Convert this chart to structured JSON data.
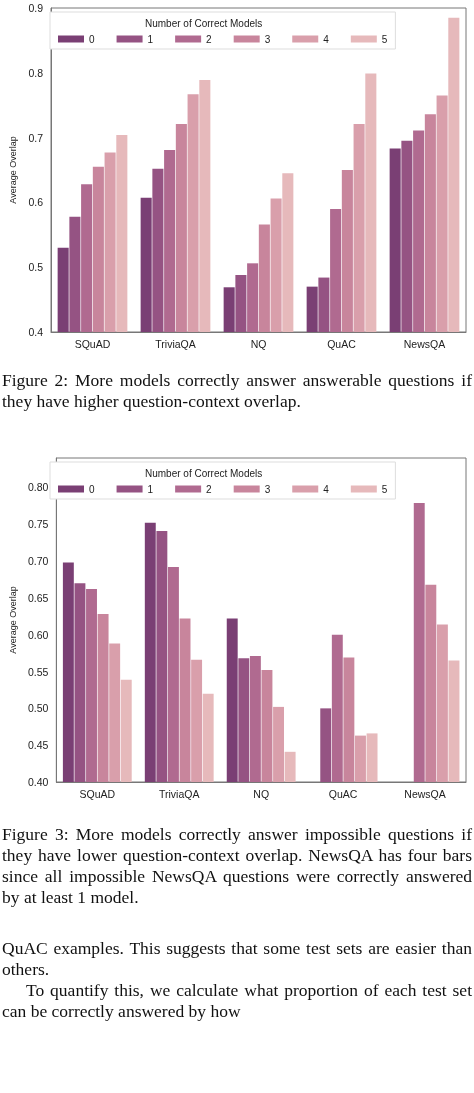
{
  "chart_data": [
    {
      "type": "bar",
      "ylabel": "Average Overlap",
      "legend_title": "Number of Correct Models",
      "legend": "top left",
      "grid": false,
      "categories": [
        "SQuAD",
        "TriviaQA",
        "NQ",
        "QuAC",
        "NewsQA"
      ],
      "ylim": [
        0.4,
        0.9
      ],
      "yticks": [
        0.4,
        0.5,
        0.6,
        0.7,
        0.8,
        0.9
      ],
      "series": [
        {
          "name": "0",
          "color": "#7a3f74",
          "values": [
            0.53,
            0.607,
            0.469,
            0.47,
            0.683
          ]
        },
        {
          "name": "1",
          "color": "#955383",
          "values": [
            0.578,
            0.652,
            0.488,
            0.484,
            0.695
          ]
        },
        {
          "name": "2",
          "color": "#b06a90",
          "values": [
            0.628,
            0.681,
            0.506,
            0.59,
            0.711
          ]
        },
        {
          "name": "3",
          "color": "#c8859c",
          "values": [
            0.655,
            0.721,
            0.566,
            0.65,
            0.736
          ]
        },
        {
          "name": "4",
          "color": "#d99fab",
          "values": [
            0.677,
            0.767,
            0.606,
            0.721,
            0.765
          ]
        },
        {
          "name": "5",
          "color": "#e6b9bb",
          "values": [
            0.704,
            0.789,
            0.645,
            0.799,
            0.885
          ]
        }
      ],
      "annotations": [
        "Figure 2: More models correctly answer answerable questions if they have higher question-context overlap."
      ]
    },
    {
      "type": "bar",
      "ylabel": "Average Overlap",
      "legend_title": "Number of Correct Models",
      "legend": "top left",
      "grid": false,
      "categories": [
        "SQuAD",
        "TriviaQA",
        "NQ",
        "QuAC",
        "NewsQA"
      ],
      "ylim": [
        0.4,
        0.84
      ],
      "yticks": [
        {
          "value": 0.4,
          "label": "0.40"
        },
        {
          "value": 0.45,
          "label": "0.45"
        },
        {
          "value": 0.5,
          "label": "0.50"
        },
        {
          "value": 0.55,
          "label": "0.55"
        },
        {
          "value": 0.6,
          "label": "0.60"
        },
        {
          "value": 0.65,
          "label": "0.65"
        },
        {
          "value": 0.7,
          "label": "0.70"
        },
        {
          "value": 0.75,
          "label": "0.75"
        },
        {
          "value": 0.8,
          "label": "0.80"
        }
      ],
      "series": [
        {
          "name": "0",
          "color": "#7a3f74",
          "values": [
            0.698,
            0.752,
            0.622,
            null,
            null
          ]
        },
        {
          "name": "1",
          "color": "#955383",
          "values": [
            0.67,
            0.741,
            0.568,
            0.5,
            null
          ]
        },
        {
          "name": "2",
          "color": "#b06a90",
          "values": [
            0.662,
            0.692,
            0.571,
            0.6,
            0.779
          ]
        },
        {
          "name": "3",
          "color": "#c8859c",
          "values": [
            0.628,
            0.622,
            0.552,
            0.569,
            0.668
          ]
        },
        {
          "name": "4",
          "color": "#d99fab",
          "values": [
            0.588,
            0.566,
            0.502,
            0.463,
            0.614
          ]
        },
        {
          "name": "5",
          "color": "#e6b9bb",
          "values": [
            0.539,
            0.52,
            0.441,
            0.466,
            0.565
          ]
        }
      ],
      "annotations": [
        "Figure 3: More models correctly answer impossible questions if they have lower question-context overlap. NewsQA has four bars since all impossible NewsQA questions were correctly answered by at least 1 model.",
        "QuAC examples. This suggests that some test sets are easier than others.",
        "To quantify this, we calculate what proportion of each test set can be correctly answered by how"
      ]
    }
  ]
}
